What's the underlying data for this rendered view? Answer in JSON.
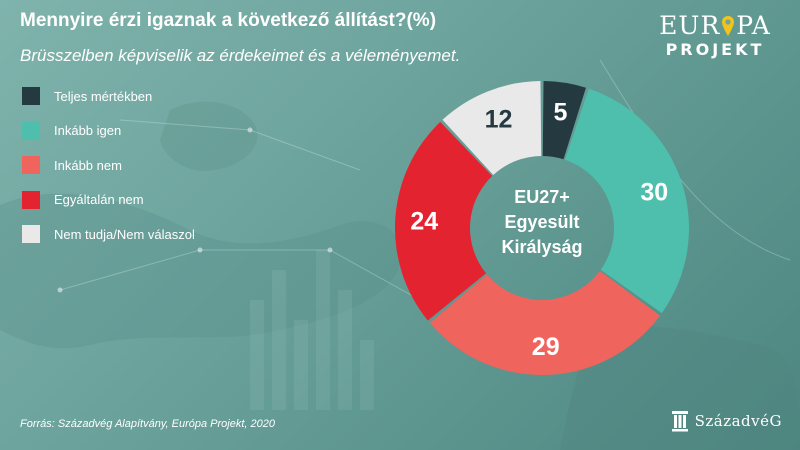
{
  "header": {
    "title": "Mennyire érzi igaznak a következő állítást?(%)",
    "subtitle": "Brüsszelben képviselik az érdekeimet és a véleményemet."
  },
  "logo": {
    "line1_left": "EUR",
    "line1_right": "PA",
    "line2": "PROJEKT",
    "pin_color": "#f2c318"
  },
  "chart_data": {
    "type": "pie",
    "variant": "donut",
    "center_label": [
      "EU27+",
      "Egyesült",
      "Királyság"
    ],
    "legend_placement": "left",
    "slices": [
      {
        "label": "Teljes mértékben",
        "value": 5,
        "color": "#253a40"
      },
      {
        "label": "Inkább igen",
        "value": 30,
        "color": "#4dbfac"
      },
      {
        "label": "Inkább nem",
        "value": 29,
        "color": "#f0645e"
      },
      {
        "label": "Egyáltalán nem",
        "value": 24,
        "color": "#e3232f"
      },
      {
        "label": "Nem tudja/Nem válaszol",
        "value": 12,
        "color": "#e9e9e9"
      }
    ]
  },
  "source": "Forrás: Századvég Alapítvány, Európa Projekt, 2020",
  "brand": "SzázadvéG"
}
